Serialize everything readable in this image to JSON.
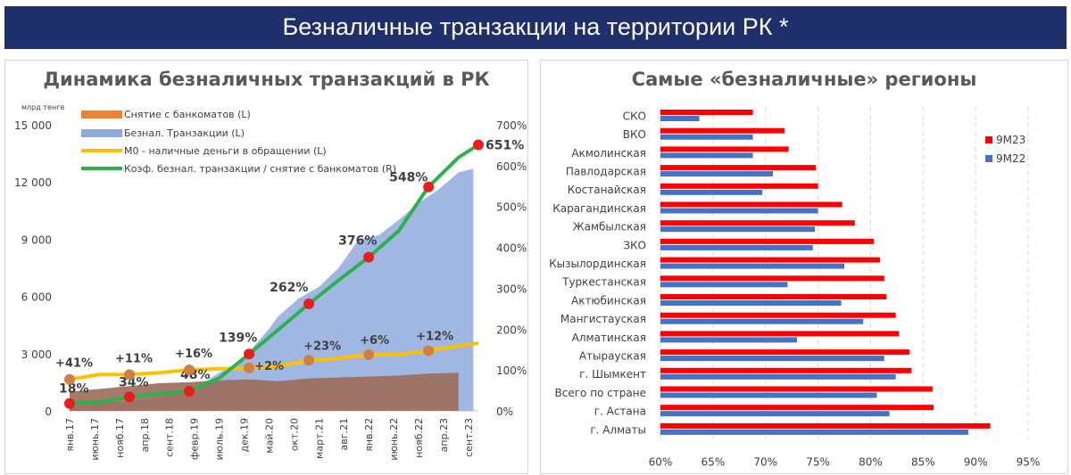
{
  "banner": {
    "title": "Безналичные транзакции на территории РК *"
  },
  "colors": {
    "banner_bg": "#1f2f6b",
    "withdrawals": "#e8833a",
    "cashless": "#8faadc",
    "m0": "#ffc000",
    "ratio": "#2bb24c",
    "marker": "#e81e1e",
    "bar_9m23": "#ff0000",
    "bar_9m22": "#4472c4"
  },
  "left_chart": {
    "title": "Динамика безналичных транзакций в РК"
  },
  "right_chart": {
    "title": "Самые «безналичные» регионы"
  },
  "chart_data": [
    {
      "type": "area",
      "title": "Динамика безналичных транзакций в РК",
      "ylabel": "млрд тенге",
      "ylim": [
        0,
        15000
      ],
      "y2lim": [
        0,
        7
      ],
      "y_ticks": [
        "0",
        "3 000",
        "6 000",
        "9 000",
        "12 000",
        "15 000"
      ],
      "y2_ticks": [
        "0%",
        "100%",
        "200%",
        "300%",
        "400%",
        "500%",
        "600%",
        "700%"
      ],
      "x_tick_labels": [
        "янв.17",
        "июнь.17",
        "нояб.17",
        "апр.18",
        "сент.18",
        "февр.19",
        "июль.19",
        "дек.19",
        "май.20",
        "окт.20",
        "март.21",
        "авг.21",
        "янв.22",
        "июнь.22",
        "нояб.22",
        "апр.23",
        "сент.23"
      ],
      "legend": [
        "Снятие с банкоматов (L)",
        "Безнал. Транзакции (L)",
        "М0 - наличные деньги в обращении (L)",
        "Коэф. безнал. транзакции / снятие с банкоматов (R)"
      ],
      "legend_position": "top-left",
      "series": [
        {
          "name": "Снятие с банкоматов (L)",
          "axis": "left",
          "x_months": [
            0,
            6,
            12,
            18,
            24,
            30,
            36,
            42,
            48,
            54,
            60,
            66,
            72,
            78
          ],
          "values": [
            1000,
            1150,
            1300,
            1450,
            1500,
            1600,
            1650,
            1550,
            1700,
            1750,
            1800,
            1850,
            1950,
            2000
          ]
        },
        {
          "name": "Безнал. Транзакции (L)",
          "axis": "left",
          "x_months": [
            0,
            6,
            12,
            18,
            24,
            30,
            33,
            36,
            40,
            42,
            46,
            50,
            54,
            58,
            62,
            66,
            70,
            74,
            78,
            81
          ],
          "values": [
            200,
            400,
            500,
            700,
            1000,
            2000,
            2400,
            3100,
            4300,
            5000,
            5900,
            6500,
            7500,
            9000,
            9200,
            10000,
            10900,
            11600,
            12500,
            12700
          ]
        },
        {
          "name": "М0 - наличные деньги в обращении (L)",
          "axis": "left",
          "x_months": [
            0,
            6,
            12,
            18,
            24,
            30,
            36,
            42,
            48,
            54,
            60,
            66,
            72,
            78,
            82
          ],
          "values": [
            1650,
            1900,
            1900,
            2000,
            2150,
            2200,
            2250,
            2350,
            2650,
            2750,
            2950,
            2950,
            3150,
            3400,
            3550
          ]
        },
        {
          "name": "Коэф. безнал. транзакции / снятие с банкоматов (R)",
          "axis": "right",
          "x_months": [
            0,
            6,
            12,
            18,
            24,
            30,
            36,
            42,
            48,
            54,
            60,
            66,
            72,
            78,
            82
          ],
          "values": [
            0.18,
            0.22,
            0.34,
            0.42,
            0.48,
            0.8,
            1.39,
            2.0,
            2.62,
            3.2,
            3.76,
            4.4,
            5.48,
            6.2,
            6.51
          ]
        }
      ],
      "annotations": [
        {
          "text": "18%",
          "x_month": 0
        },
        {
          "text": "34%",
          "x_month": 12
        },
        {
          "text": "48%",
          "x_month": 24
        },
        {
          "text": "139%",
          "x_month": 36
        },
        {
          "text": "262%",
          "x_month": 48
        },
        {
          "text": "376%",
          "x_month": 60
        },
        {
          "text": "548%",
          "x_month": 72
        },
        {
          "text": "651%",
          "x_month": 82
        },
        {
          "text": "+41%",
          "x_month": 0
        },
        {
          "text": "+11%",
          "x_month": 12
        },
        {
          "text": "+16%",
          "x_month": 24
        },
        {
          "text": "+2%",
          "x_month": 36
        },
        {
          "text": "+23%",
          "x_month": 48
        },
        {
          "text": "+6%",
          "x_month": 60
        },
        {
          "text": "+12%",
          "x_month": 72
        }
      ]
    },
    {
      "type": "bar",
      "orientation": "horizontal",
      "title": "Самые «безналичные» регионы",
      "xlim": [
        0.6,
        0.95
      ],
      "x_ticks": [
        "60%",
        "65%",
        "70%",
        "75%",
        "80%",
        "85%",
        "90%",
        "95%"
      ],
      "categories": [
        "СКО",
        "ВКО",
        "Акмолинская",
        "Павлодарская",
        "Костанайская",
        "Карагандинская",
        "Жамбылская",
        "ЗКО",
        "Кызылординская",
        "Туркестанская",
        "Актюбинская",
        "Мангистауская",
        "Алматинская",
        "Атырауская",
        "г. Шымкент",
        "Всего по стране",
        "г. Астана",
        "г. Алматы"
      ],
      "legend_position": "right",
      "series": [
        {
          "name": "9М23",
          "values": [
            0.688,
            0.718,
            0.722,
            0.748,
            0.75,
            0.773,
            0.785,
            0.803,
            0.809,
            0.813,
            0.815,
            0.824,
            0.827,
            0.837,
            0.839,
            0.859,
            0.86,
            0.914
          ]
        },
        {
          "name": "9М22",
          "values": [
            0.637,
            0.688,
            0.688,
            0.707,
            0.697,
            0.75,
            0.747,
            0.745,
            0.775,
            0.721,
            0.772,
            0.793,
            0.73,
            0.813,
            0.824,
            0.806,
            0.818,
            0.893
          ]
        }
      ]
    }
  ]
}
